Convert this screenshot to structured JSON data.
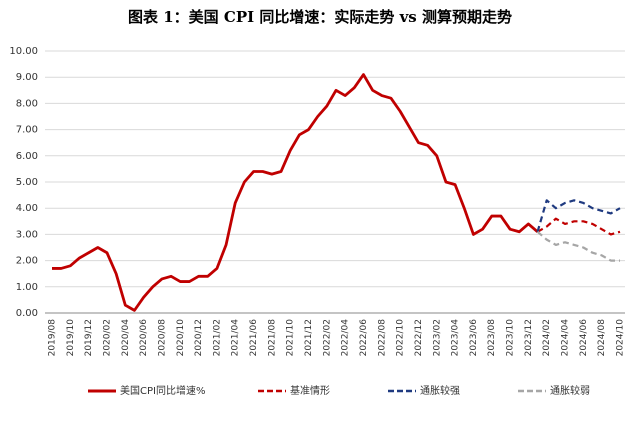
{
  "chart_data": {
    "type": "line",
    "title": "图表 1：美国 CPI 同比增速：实际走势 vs 测算预期走势",
    "categories": [
      "2019/08",
      null,
      "2019/10",
      null,
      "2019/12",
      null,
      "2020/02",
      null,
      "2020/04",
      null,
      "2020/06",
      null,
      "2020/08",
      null,
      "2020/10",
      null,
      "2020/12",
      null,
      "2021/02",
      null,
      "2021/04",
      null,
      "2021/06",
      null,
      "2021/08",
      null,
      "2021/10",
      null,
      "2021/12",
      null,
      "2022/02",
      null,
      "2022/04",
      null,
      "2022/06",
      null,
      "2022/08",
      null,
      "2022/10",
      null,
      "2022/12",
      null,
      "2023/02",
      null,
      "2023/04",
      null,
      "2023/06",
      null,
      "2023/08",
      null,
      "2023/10",
      null,
      "2023/12",
      null,
      "2024/02",
      null,
      "2024/04",
      null,
      "2024/06",
      null,
      "2024/08",
      null,
      "2024/10"
    ],
    "series": [
      {
        "name": "美国CPI同比增速%",
        "color": "#c00000",
        "dash": false,
        "values": [
          1.7,
          1.7,
          1.8,
          2.1,
          2.3,
          2.5,
          2.3,
          1.5,
          0.3,
          0.1,
          0.6,
          1.0,
          1.3,
          1.4,
          1.2,
          1.2,
          1.4,
          1.4,
          1.7,
          2.6,
          4.2,
          5.0,
          5.4,
          5.4,
          5.3,
          5.4,
          6.2,
          6.8,
          7.0,
          7.5,
          7.9,
          8.5,
          8.3,
          8.6,
          9.1,
          8.5,
          8.3,
          8.2,
          7.7,
          7.1,
          6.5,
          6.4,
          6.0,
          5.0,
          4.9,
          4.0,
          3.0,
          3.2,
          3.7,
          3.7,
          3.2,
          3.1,
          3.4,
          3.1,
          null,
          null,
          null,
          null,
          null,
          null,
          null,
          null,
          null
        ]
      },
      {
        "name": "基准情形",
        "color": "#c00000",
        "dash": true,
        "values": [
          null,
          null,
          null,
          null,
          null,
          null,
          null,
          null,
          null,
          null,
          null,
          null,
          null,
          null,
          null,
          null,
          null,
          null,
          null,
          null,
          null,
          null,
          null,
          null,
          null,
          null,
          null,
          null,
          null,
          null,
          null,
          null,
          null,
          null,
          null,
          null,
          null,
          null,
          null,
          null,
          null,
          null,
          null,
          null,
          null,
          null,
          null,
          null,
          null,
          null,
          null,
          null,
          null,
          3.1,
          3.3,
          3.6,
          3.4,
          3.5,
          3.5,
          3.4,
          3.2,
          3.0,
          3.1
        ]
      },
      {
        "name": "通胀较强",
        "color": "#1f3a80",
        "dash": true,
        "values": [
          null,
          null,
          null,
          null,
          null,
          null,
          null,
          null,
          null,
          null,
          null,
          null,
          null,
          null,
          null,
          null,
          null,
          null,
          null,
          null,
          null,
          null,
          null,
          null,
          null,
          null,
          null,
          null,
          null,
          null,
          null,
          null,
          null,
          null,
          null,
          null,
          null,
          null,
          null,
          null,
          null,
          null,
          null,
          null,
          null,
          null,
          null,
          null,
          null,
          null,
          null,
          null,
          null,
          3.1,
          4.3,
          4.0,
          4.2,
          4.3,
          4.2,
          4.0,
          3.9,
          3.8,
          4.0
        ]
      },
      {
        "name": "通胀较弱",
        "color": "#a6a6a6",
        "dash": true,
        "values": [
          null,
          null,
          null,
          null,
          null,
          null,
          null,
          null,
          null,
          null,
          null,
          null,
          null,
          null,
          null,
          null,
          null,
          null,
          null,
          null,
          null,
          null,
          null,
          null,
          null,
          null,
          null,
          null,
          null,
          null,
          null,
          null,
          null,
          null,
          null,
          null,
          null,
          null,
          null,
          null,
          null,
          null,
          null,
          null,
          null,
          null,
          null,
          null,
          null,
          null,
          null,
          null,
          null,
          3.1,
          2.8,
          2.6,
          2.7,
          2.6,
          2.5,
          2.3,
          2.2,
          2.0,
          2.0
        ]
      }
    ],
    "ylim": [
      0,
      10
    ],
    "yticks": [
      {
        "value": 0,
        "label": "0.00"
      },
      {
        "value": 1,
        "label": "1.00"
      },
      {
        "value": 2,
        "label": "2.00"
      },
      {
        "value": 3,
        "label": "3.00"
      },
      {
        "value": 4,
        "label": "4.00"
      },
      {
        "value": 5,
        "label": "5.00"
      },
      {
        "value": 6,
        "label": "6.00"
      },
      {
        "value": 7,
        "label": "7.00"
      },
      {
        "value": 8,
        "label": "8.00"
      },
      {
        "value": 9,
        "label": "9.00"
      },
      {
        "value": 10,
        "label": "10.00"
      }
    ],
    "grid": true,
    "legend": "bottom"
  }
}
